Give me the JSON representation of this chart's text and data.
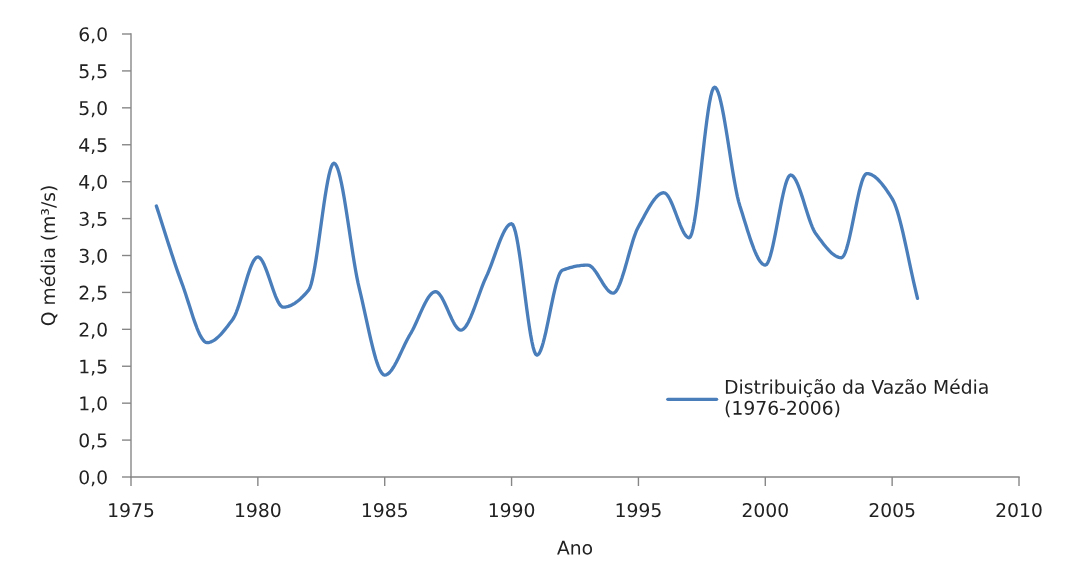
{
  "chart_data": {
    "type": "line",
    "xlabel": "Ano",
    "ylabel": "Q média (m³/s)",
    "x": [
      1976,
      1977,
      1978,
      1979,
      1980,
      1981,
      1982,
      1983,
      1984,
      1985,
      1986,
      1987,
      1988,
      1989,
      1990,
      1991,
      1992,
      1993,
      1994,
      1995,
      1996,
      1997,
      1998,
      1999,
      2000,
      2001,
      2002,
      2003,
      2004,
      2005,
      2006
    ],
    "series": [
      {
        "name": "Distribuição da Vazão Média\n(1976-2006)",
        "color": "#4a7ebb",
        "values": [
          3.67,
          2.63,
          1.82,
          2.13,
          2.98,
          2.3,
          2.53,
          4.25,
          2.55,
          1.38,
          1.93,
          2.51,
          1.99,
          2.71,
          3.43,
          1.65,
          2.8,
          2.87,
          2.49,
          3.39,
          3.85,
          3.24,
          5.28,
          3.67,
          2.87,
          4.09,
          3.29,
          2.97,
          4.11,
          3.77,
          2.42
        ]
      }
    ],
    "xlim": [
      1975,
      2010
    ],
    "xticks": [
      1975,
      1980,
      1985,
      1990,
      1995,
      2000,
      2005,
      2010
    ],
    "ylim": [
      0,
      6
    ],
    "yticks": [
      {
        "value": 0,
        "label": "0,0"
      },
      {
        "value": 0.5,
        "label": "0,5"
      },
      {
        "value": 1,
        "label": "1,0"
      },
      {
        "value": 1.5,
        "label": "1,5"
      },
      {
        "value": 2,
        "label": "2,0"
      },
      {
        "value": 2.5,
        "label": "2,5"
      },
      {
        "value": 3,
        "label": "3,0"
      },
      {
        "value": 3.5,
        "label": "3,5"
      },
      {
        "value": 4,
        "label": "4,0"
      },
      {
        "value": 4.5,
        "label": "4,5"
      },
      {
        "value": 5,
        "label": "5,0"
      },
      {
        "value": 5.5,
        "label": "5,5"
      },
      {
        "value": 6,
        "label": "6,0"
      }
    ],
    "grid": false,
    "legend": "lower right",
    "marker": "none",
    "line_style": "solid"
  }
}
